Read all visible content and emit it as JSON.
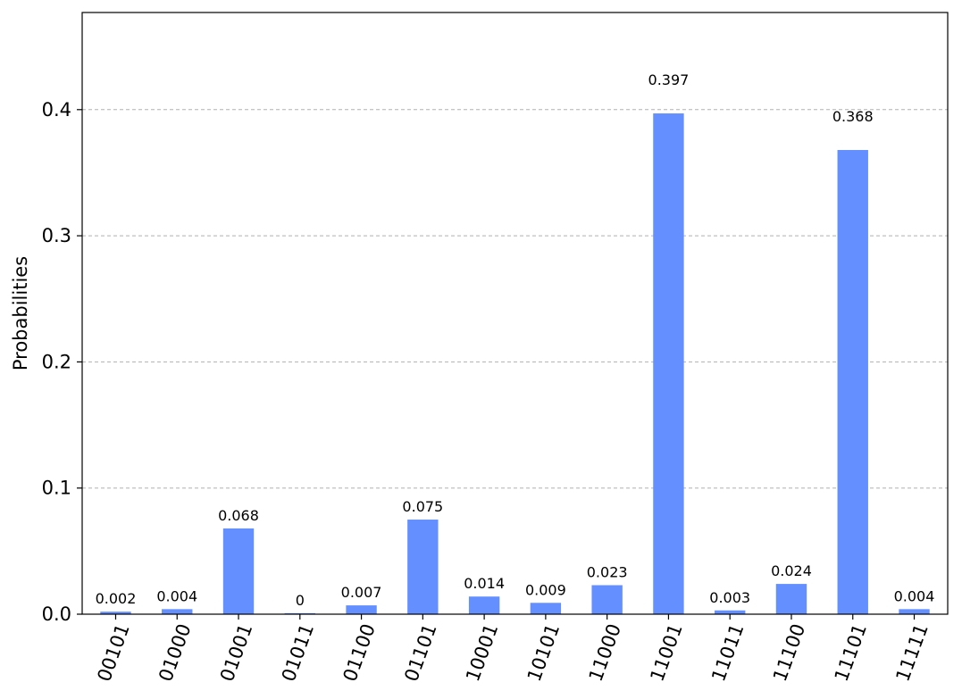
{
  "chart_data": {
    "type": "bar",
    "title": "",
    "xlabel": "",
    "ylabel": "Probabilities",
    "categories": [
      "00101",
      "01000",
      "01001",
      "01011",
      "01100",
      "01101",
      "10001",
      "10101",
      "11000",
      "11001",
      "11011",
      "11100",
      "11101",
      "11111"
    ],
    "values": [
      0.002,
      0.004,
      0.068,
      0.0008,
      0.007,
      0.075,
      0.014,
      0.009,
      0.023,
      0.397,
      0.003,
      0.024,
      0.368,
      0.004
    ],
    "value_labels": [
      "0.002",
      "0.004",
      "0.068",
      "0",
      "0.007",
      "0.075",
      "0.014",
      "0.009",
      "0.023",
      "0.397",
      "0.003",
      "0.024",
      "0.368",
      "0.004"
    ],
    "ylim": [
      0,
      0.477
    ],
    "yticks": [
      0.0,
      0.1,
      0.2,
      0.3,
      0.4
    ],
    "ytick_labels": [
      "0.0",
      "0.1",
      "0.2",
      "0.3",
      "0.4"
    ],
    "grid": "horizontal-dashed",
    "legend": "none",
    "bar_color": "#648fff",
    "grid_color": "#b0b0b0"
  }
}
